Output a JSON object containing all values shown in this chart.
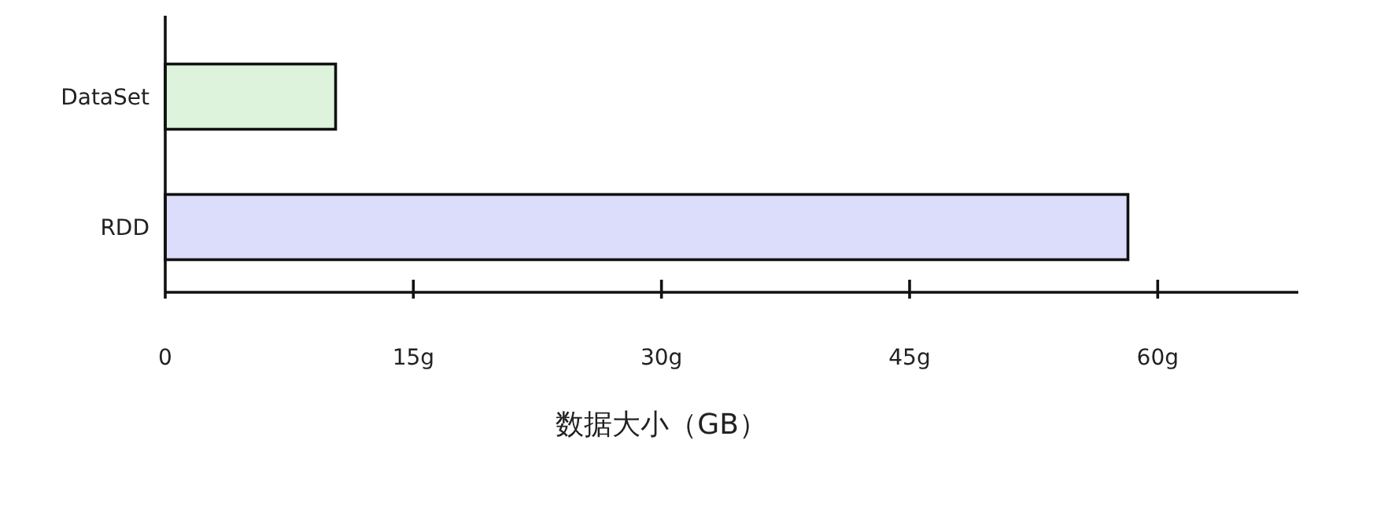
{
  "chart_data": {
    "type": "bar",
    "orientation": "horizontal",
    "categories": [
      "DataSet",
      "RDD"
    ],
    "values": [
      10.3,
      58.2
    ],
    "colors": [
      "#ddf3dc",
      "#dcdcfb"
    ],
    "xlim": [
      0,
      68.5
    ],
    "xticks": [
      0,
      {
        "value": 15,
        "label": "15g"
      },
      {
        "value": 30,
        "label": "30g"
      },
      {
        "value": 45,
        "label": "45g"
      },
      {
        "value": 60,
        "label": "60g"
      }
    ],
    "xlabel": "数据大小（GB）"
  }
}
